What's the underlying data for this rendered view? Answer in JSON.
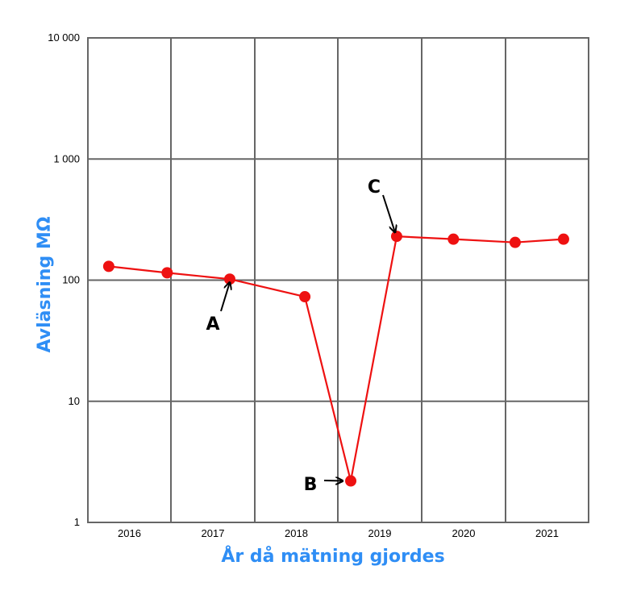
{
  "chart_data": {
    "type": "line",
    "xlabel": "År då mätning gjordes",
    "ylabel": "Avläsning MΩ",
    "y_scale": "log",
    "ylim": [
      1,
      10000
    ],
    "xlim": [
      2015.6,
      2021.6
    ],
    "grid": true,
    "x_ticks": [
      {
        "value": 2016,
        "label": "2016"
      },
      {
        "value": 2017,
        "label": "2017"
      },
      {
        "value": 2018,
        "label": "2018"
      },
      {
        "value": 2019,
        "label": "2019"
      },
      {
        "value": 2020,
        "label": "2020"
      },
      {
        "value": 2021,
        "label": "2021"
      }
    ],
    "y_ticks": [
      {
        "value": 1,
        "label": "1"
      },
      {
        "value": 10,
        "label": "10"
      },
      {
        "value": 100,
        "label": "100"
      },
      {
        "value": 1000,
        "label": "1 000"
      },
      {
        "value": 10000,
        "label": "10 000"
      }
    ],
    "series": [
      {
        "color": "#ee1111",
        "points": [
          {
            "x": 2015.85,
            "y": 130
          },
          {
            "x": 2016.55,
            "y": 115
          },
          {
            "x": 2017.3,
            "y": 102
          },
          {
            "x": 2018.2,
            "y": 73
          },
          {
            "x": 2018.75,
            "y": 2.2
          },
          {
            "x": 2019.3,
            "y": 230
          },
          {
            "x": 2019.98,
            "y": 218
          },
          {
            "x": 2020.72,
            "y": 205
          },
          {
            "x": 2021.3,
            "y": 218
          }
        ]
      }
    ],
    "annotations": [
      {
        "text": "A",
        "point_index": 2
      },
      {
        "text": "B",
        "point_index": 4
      },
      {
        "text": "C",
        "point_index": 5
      }
    ]
  },
  "colors": {
    "series": "#ee1111",
    "axis_title": "#2f8ef5",
    "grid": "#666666"
  }
}
